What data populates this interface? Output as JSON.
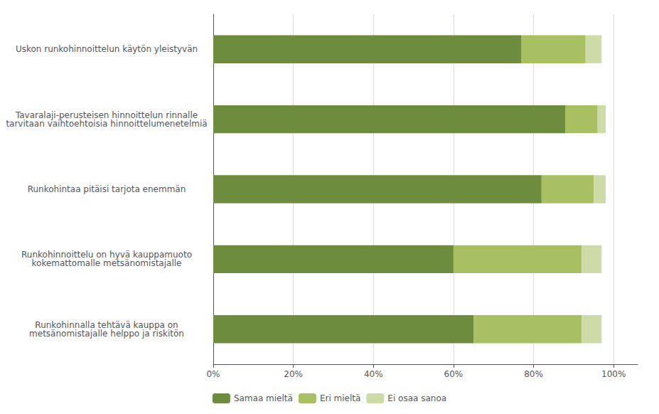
{
  "chart_data": {
    "type": "bar",
    "orientation": "horizontal",
    "stacked": true,
    "categories": [
      "Runkohinnalla tehtävä kauppa on\nmetsänomistajalle helppo ja riskitön",
      "Runkohinnoittelu on hyvä kauppamuoto\nkokemattomalle metsänomistajalle",
      "Runkohintaa pitäisi tarjota enemmän",
      "Tavaralaji-perusteisen hinnoittelun rinnalle\ntarvitaan vaihtoehtoisia hinnoittelumenetelmiä",
      "Uskon runkohinnoittelun käytön yleistyvän"
    ],
    "series": [
      {
        "name": "Samaa mieltä",
        "color": "#6d8c3e",
        "values": [
          65,
          60,
          82,
          88,
          77
        ]
      },
      {
        "name": "Eri mieltä",
        "color": "#a8c061",
        "values": [
          27,
          32,
          13,
          8,
          16
        ]
      },
      {
        "name": "Ei osaa sanoa",
        "color": "#cddba7",
        "values": [
          5,
          5,
          3,
          2,
          4
        ]
      }
    ],
    "xlim": [
      0,
      106
    ],
    "xticks": [
      {
        "value": 0,
        "label": "0%"
      },
      {
        "value": 20,
        "label": "20%"
      },
      {
        "value": 40,
        "label": "40%"
      },
      {
        "value": 60,
        "label": "60%"
      },
      {
        "value": 80,
        "label": "80%"
      },
      {
        "value": 100,
        "label": "100%"
      }
    ],
    "grid": true,
    "legend": "bottom"
  }
}
